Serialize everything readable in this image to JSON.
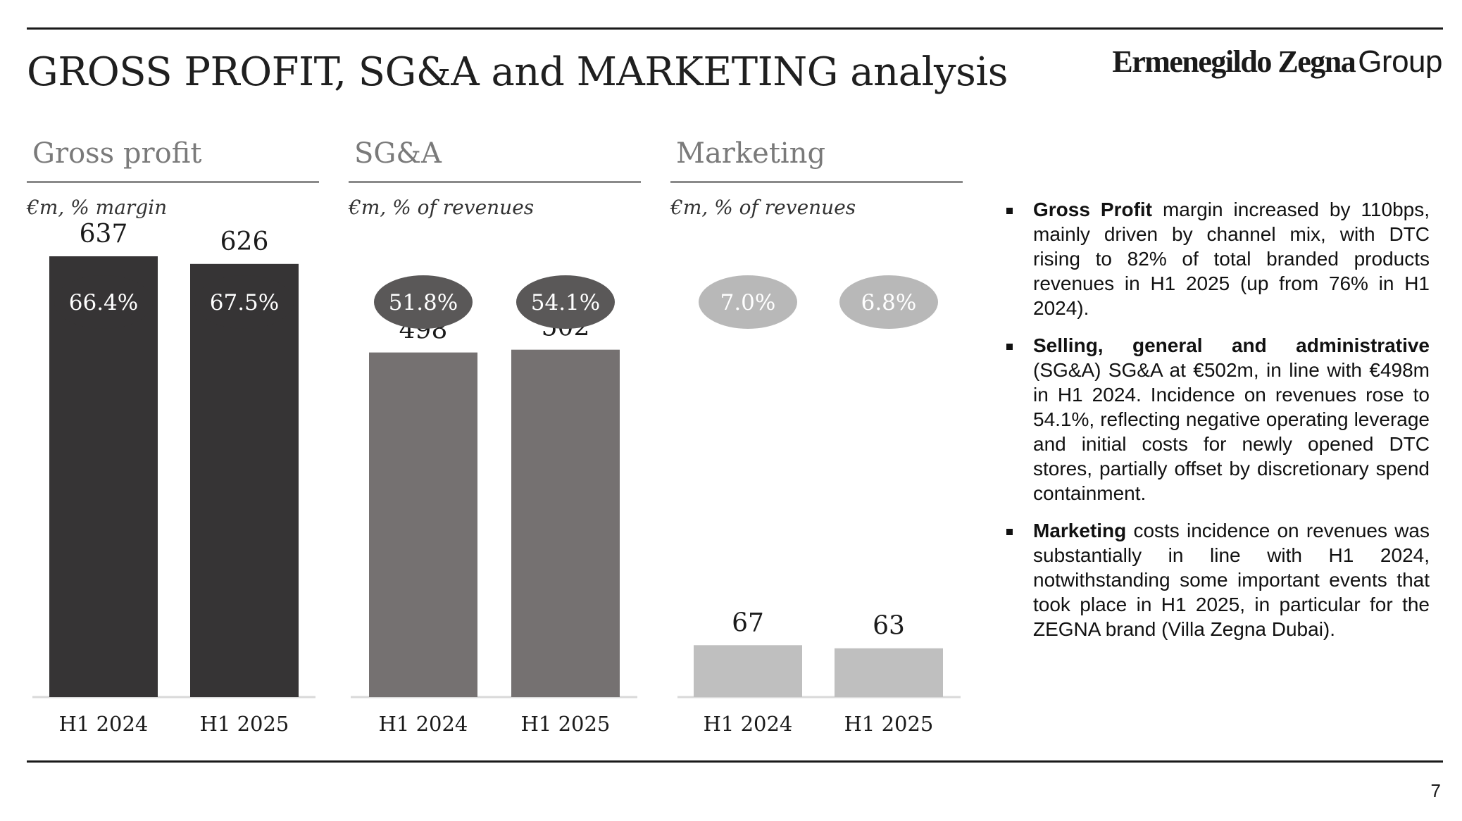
{
  "page": {
    "title": "GROSS PROFIT, SG&A and MARKETING analysis",
    "logo_brand": "Ermenegildo Zegna",
    "logo_group": "Group",
    "page_number": "7"
  },
  "chart_data": [
    {
      "type": "bar",
      "title": "Gross profit",
      "subtitle": "€m, % margin",
      "categories": [
        "H1 2024",
        "H1 2025"
      ],
      "values": [
        637,
        626
      ],
      "value_labels": [
        "637",
        "626"
      ],
      "percent_labels": [
        "66.4%",
        "67.5%"
      ],
      "bar_color": "#363435",
      "bubble_color": "#363435",
      "bubble_text_color": "#ffffff",
      "ylim": [
        0,
        637
      ],
      "grid": false
    },
    {
      "type": "bar",
      "title": "SG&A",
      "subtitle": "€m, % of revenues",
      "categories": [
        "H1 2024",
        "H1 2025"
      ],
      "values": [
        498,
        502
      ],
      "value_labels": [
        "498",
        "502"
      ],
      "percent_labels": [
        "51.8%",
        "54.1%"
      ],
      "bar_color": "#757171",
      "bubble_color": "#5a5858",
      "bubble_text_color": "#ffffff",
      "ylim": [
        0,
        637
      ],
      "grid": false
    },
    {
      "type": "bar",
      "title": "Marketing",
      "subtitle": "€m, % of revenues",
      "categories": [
        "H1 2024",
        "H1 2025"
      ],
      "values": [
        67,
        63
      ],
      "value_labels": [
        "67",
        "63"
      ],
      "percent_labels": [
        "7.0%",
        "6.8%"
      ],
      "bar_color": "#bfbfbf",
      "bubble_color": "#b8b8b8",
      "bubble_text_color": "#ffffff",
      "ylim": [
        0,
        200
      ],
      "grid": false
    }
  ],
  "bullets": [
    {
      "bold": "Gross Profit",
      "text": " margin increased by 110bps, mainly driven by channel mix, with DTC rising to 82% of total branded products revenues in H1 2025 (up from 76% in H1 2024)."
    },
    {
      "bold": "Selling, general and administrative",
      "text": " (SG&A) SG&A at €502m, in line with €498m in H1 2024. Incidence on revenues rose to 54.1%, reflecting negative operating leverage and initial costs for newly opened DTC stores, partially offset by discretionary spend containment."
    },
    {
      "bold": "Marketing",
      "text": " costs incidence on revenues was substantially in line with H1 2024, notwithstanding some important events that took place in H1 2025, in particular for the ZEGNA brand (Villa Zegna Dubai)."
    }
  ]
}
